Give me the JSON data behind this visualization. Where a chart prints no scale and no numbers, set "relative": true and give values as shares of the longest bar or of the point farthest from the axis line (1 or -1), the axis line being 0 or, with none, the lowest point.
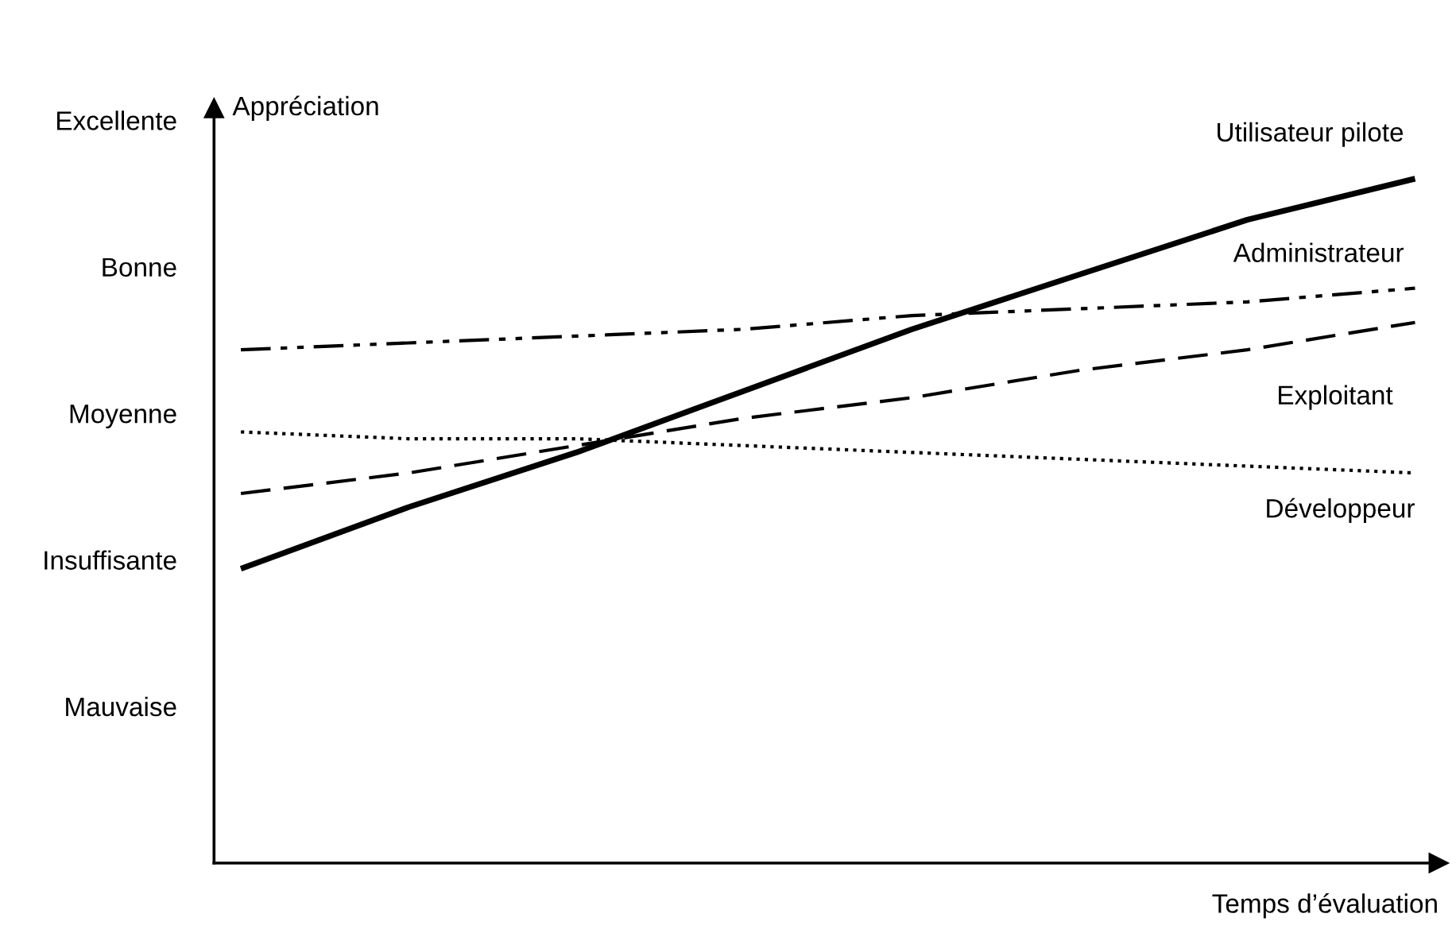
{
  "chart_data": {
    "type": "line",
    "relative": true,
    "xlabel": "Temps d’évaluation",
    "ylabel": "Appréciation",
    "categories": [
      null,
      null,
      null,
      null,
      null,
      null,
      null,
      null
    ],
    "annotations": [
      "Excellente",
      "Bonne",
      "Moyenne",
      "Insuffisante",
      "Mauvaise"
    ],
    "grid": false,
    "legend": false,
    "marker": "none",
    "series": [
      {
        "name": "Utilisateur pilote",
        "color": "#000000",
        "line_style": "solid",
        "values": [
          0.43,
          0.52,
          0.6,
          0.69,
          0.78,
          0.86,
          0.94,
          1
        ]
      },
      {
        "name": "Administrateur",
        "color": "#000000",
        "line_style": "dashdotdot",
        "values": [
          0.75,
          0.76,
          0.77,
          0.78,
          0.8,
          0.81,
          0.82,
          0.84
        ]
      },
      {
        "name": "Exploitant",
        "color": "#000000",
        "line_style": "dashed",
        "values": [
          0.54,
          0.57,
          0.61,
          0.65,
          0.68,
          0.72,
          0.75,
          0.79
        ]
      },
      {
        "name": "Développeur",
        "color": "#000000",
        "line_style": "dotted",
        "values": [
          0.63,
          0.62,
          0.62,
          0.61,
          0.6,
          0.59,
          0.58,
          0.57
        ]
      }
    ]
  }
}
